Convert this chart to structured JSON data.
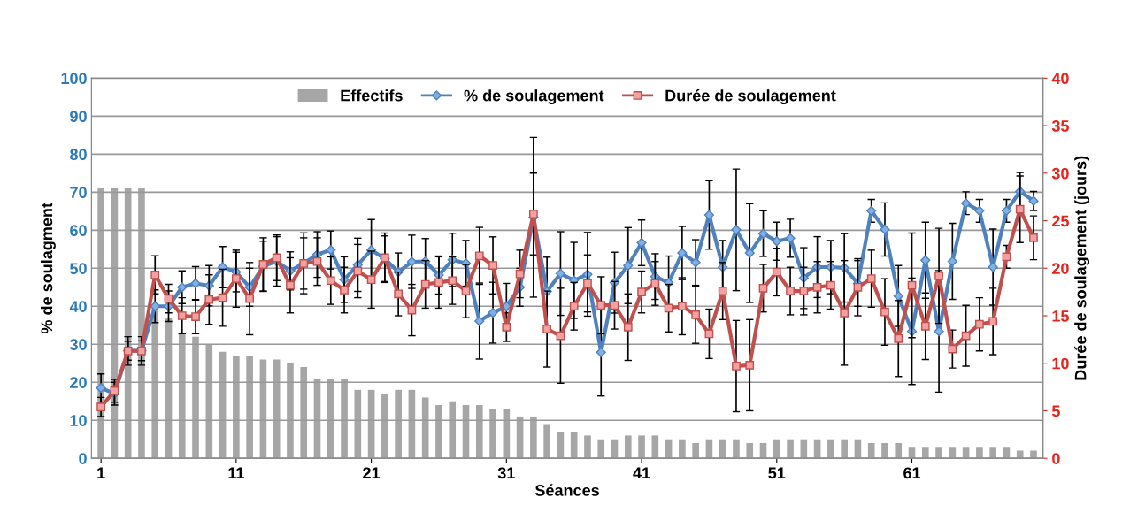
{
  "chart_data": {
    "type": "bar",
    "xlabel": "Séances",
    "ylabel": "% de soulagment",
    "y2label": "Durée de soulagement (jours)",
    "x": [
      1,
      2,
      3,
      4,
      5,
      6,
      7,
      8,
      9,
      10,
      11,
      12,
      13,
      14,
      15,
      16,
      17,
      18,
      19,
      20,
      21,
      22,
      23,
      24,
      25,
      26,
      27,
      28,
      29,
      30,
      31,
      32,
      33,
      34,
      35,
      36,
      37,
      38,
      39,
      40,
      41,
      42,
      43,
      44,
      45,
      46,
      47,
      48,
      49,
      50,
      51,
      52,
      53,
      54,
      55,
      56,
      57,
      58,
      59,
      60,
      61,
      62,
      63,
      64,
      65,
      66,
      67,
      68,
      69,
      70
    ],
    "xlim": [
      0.3,
      70.7
    ],
    "xticks": [
      1,
      11,
      21,
      31,
      41,
      51,
      61
    ],
    "ylim": [
      0,
      100
    ],
    "yticks": [
      0,
      10,
      20,
      30,
      40,
      50,
      60,
      70,
      80,
      90,
      100
    ],
    "y2lim": [
      0,
      40
    ],
    "y2ticks": [
      0,
      5,
      10,
      15,
      20,
      25,
      30,
      35,
      40
    ],
    "grid": "y",
    "legend": "top",
    "series": [
      {
        "name": "Effectifs",
        "color": "#a6a6a6",
        "values": [
          71,
          71,
          71,
          71,
          40,
          37,
          33,
          32,
          30,
          28,
          27,
          27,
          26,
          26,
          25,
          24,
          21,
          21,
          21,
          18,
          18,
          17,
          18,
          18,
          16,
          14,
          15,
          14,
          14,
          13,
          13,
          11,
          11,
          9,
          7,
          7,
          6,
          5,
          5,
          6,
          6,
          6,
          5,
          5,
          4,
          5,
          5,
          5,
          4,
          4,
          5,
          5,
          5,
          5,
          5,
          5,
          5,
          4,
          4,
          4,
          3,
          3,
          3,
          3,
          3,
          3,
          3,
          3,
          2,
          2
        ]
      },
      {
        "name": "% de soulagement",
        "type": "line",
        "marker": "diamond",
        "color": "#4f81bd",
        "values": [
          18.5,
          17,
          28.3,
          28.3,
          40,
          40,
          45,
          46,
          45.4,
          50.3,
          49,
          45,
          50.5,
          51.8,
          49.3,
          51.3,
          53.6,
          54.8,
          47,
          50.9,
          54.8,
          52.5,
          49,
          51.7,
          51.8,
          48.2,
          52.2,
          51.3,
          36.1,
          38.3,
          40,
          45,
          63.4,
          43.9,
          48.6,
          46.8,
          48.4,
          27.9,
          46.2,
          50.7,
          56.7,
          47.8,
          46.2,
          54,
          51.5,
          64,
          50.3,
          60.1,
          54,
          59.1,
          57.1,
          57.9,
          47.4,
          50.3,
          50.3,
          50.1,
          46,
          65.1,
          60.2,
          42.7,
          33.4,
          52.1,
          33.4,
          51.8,
          67.1,
          65.1,
          50.3,
          65.1,
          70.2,
          67.7
        ],
        "errors": [
          3.7,
          3,
          2.5,
          2.6,
          4.3,
          4,
          4.3,
          4.4,
          5.3,
          5.4,
          5.2,
          5,
          6.6,
          6.5,
          5,
          8,
          6,
          5,
          6,
          7,
          8,
          6,
          5,
          7,
          6,
          5,
          7,
          6,
          10,
          8,
          6,
          5,
          21,
          9,
          11,
          10,
          11,
          11.5,
          8,
          10,
          6,
          6,
          7,
          7,
          6,
          9,
          7,
          16,
          13,
          6,
          5,
          5,
          8,
          8,
          7,
          9,
          6,
          3,
          7,
          8,
          14,
          10,
          16,
          10,
          3,
          3,
          10,
          3,
          5,
          2.5
        ]
      },
      {
        "name": "Durée de soulagement",
        "type": "line",
        "axis": "y2",
        "marker": "square",
        "color": "#c0504d",
        "values": [
          5.4,
          7.1,
          11.3,
          11.3,
          19.3,
          16.8,
          15.0,
          14.9,
          16.7,
          16.9,
          18.9,
          16.8,
          20.4,
          21.1,
          18.2,
          20.5,
          20.7,
          18.7,
          17.7,
          19.7,
          18.8,
          21.1,
          17.3,
          15.6,
          18.3,
          18.5,
          18.7,
          17.6,
          21.3,
          20.3,
          13.8,
          19.4,
          25.7,
          13.6,
          12.9,
          16,
          18.4,
          16.1,
          16.1,
          13.8,
          17.5,
          18.4,
          15.8,
          16,
          15.1,
          13.1,
          17.6,
          9.7,
          9.8,
          17.9,
          19.6,
          17.6,
          17.6,
          18,
          18.2,
          15.3,
          18,
          18.9,
          15.4,
          12.6,
          18.2,
          13.9,
          19.2,
          11.5,
          12.9,
          14.1,
          14.4,
          21.2,
          26.2,
          23.2
        ],
        "errors": [
          1.0,
          1.2,
          1.5,
          1.5,
          2.0,
          1.5,
          1.9,
          1.8,
          2.6,
          3.0,
          3.0,
          3.8,
          2.8,
          2.4,
          2.9,
          2.7,
          2.5,
          2.5,
          2.4,
          2.8,
          3.0,
          2.6,
          2.3,
          2.7,
          2.5,
          2.7,
          2.5,
          2.8,
          3.0,
          3.0,
          1.5,
          2.5,
          4.3,
          4.0,
          5.0,
          2.5,
          3.0,
          3.0,
          2.5,
          3.5,
          2.2,
          2.3,
          2.5,
          3.0,
          3.0,
          2.6,
          3.0,
          4.8,
          4.8,
          2.5,
          2.5,
          2.5,
          2.5,
          2.7,
          2.5,
          5.5,
          3.0,
          3.0,
          3.5,
          4.0,
          5.5,
          3.5,
          5.0,
          2.0,
          3.2,
          2.8,
          3.5,
          1.2,
          3.5,
          2.3
        ]
      }
    ]
  }
}
